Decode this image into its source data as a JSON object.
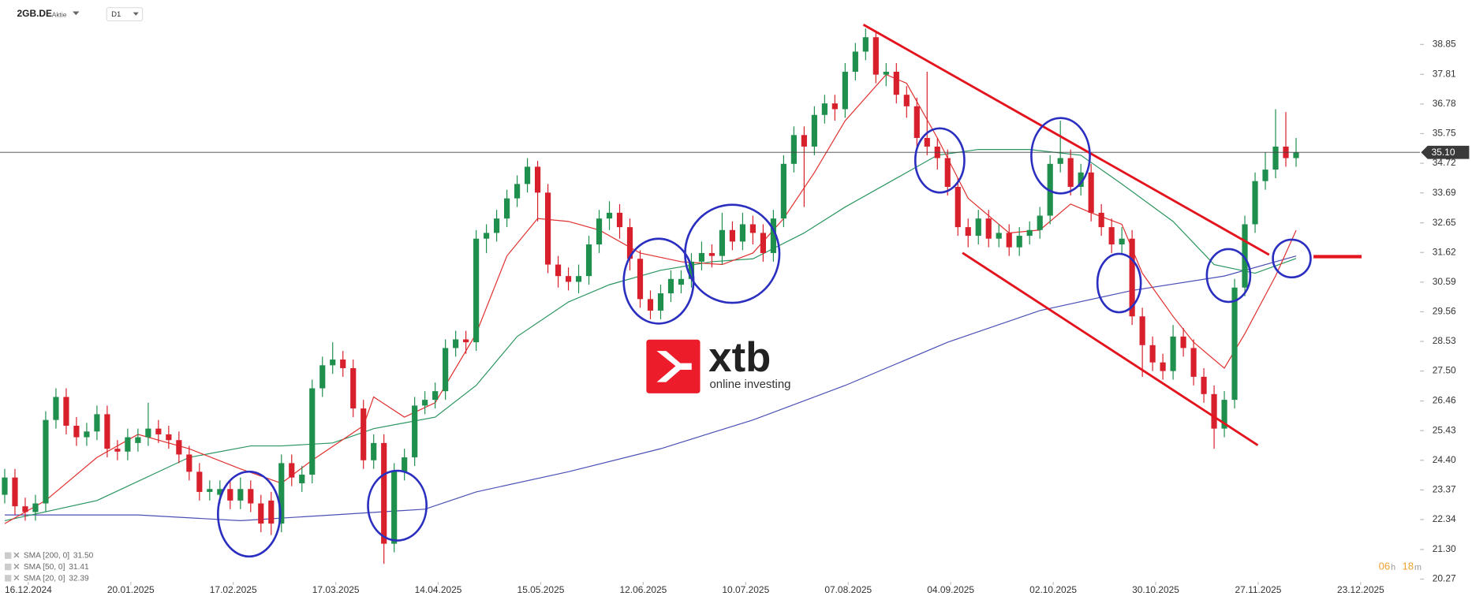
{
  "header": {
    "symbol": "2GB.DE",
    "kind": "Aktie",
    "interval": "D1"
  },
  "logo": {
    "brand": "xtb",
    "tagline": "online investing"
  },
  "countdown": [
    "06",
    "h",
    "18",
    "m"
  ],
  "chart_data": {
    "type": "candlestick",
    "up_color": "#1f8f4e",
    "down_color": "#d8202c",
    "xlim": [
      -0.46,
      138.1
    ],
    "ylim": [
      20.17,
      40.39
    ],
    "yticks": [
      38.85,
      37.81,
      36.78,
      35.75,
      34.72,
      33.69,
      32.65,
      31.62,
      30.59,
      29.56,
      28.53,
      {
        "value": 27.5,
        "label": "27.50"
      },
      26.46,
      25.43,
      {
        "value": 24.4,
        "label": "24.40"
      },
      23.37,
      22.34,
      {
        "value": 21.3,
        "label": "21.30"
      },
      20.27
    ],
    "xticks": [
      {
        "value": 2.3,
        "label": "16.12.2024"
      },
      {
        "value": 12.3,
        "label": "20.01.2025"
      },
      {
        "value": 22.3,
        "label": "17.02.2025"
      },
      {
        "value": 32.3,
        "label": "17.03.2025"
      },
      {
        "value": 42.3,
        "label": "14.04.2025"
      },
      {
        "value": 52.3,
        "label": "15.05.2025"
      },
      {
        "value": 62.3,
        "label": "12.06.2025"
      },
      {
        "value": 72.3,
        "label": "10.07.2025"
      },
      {
        "value": 82.3,
        "label": "07.08.2025"
      },
      {
        "value": 92.3,
        "label": "04.09.2025"
      },
      {
        "value": 102.3,
        "label": "02.10.2025"
      },
      {
        "value": 112.3,
        "label": "30.10.2025"
      },
      {
        "value": 122.3,
        "label": "27.11.2025"
      },
      {
        "value": 132.3,
        "label": "23.12.2025"
      }
    ],
    "price_line": {
      "value": 35.1,
      "label": "35.10"
    },
    "open": [
      23.2,
      23.8,
      22.8,
      22.6,
      22.9,
      25.8,
      26.6,
      25.6,
      25.2,
      25.4,
      26,
      24.8,
      24.7,
      25.0,
      25.2,
      25.5,
      25.3,
      25.1,
      24.6,
      24.0,
      23.3,
      23.2,
      23.4,
      23.0,
      23.4,
      22.9,
      23.0,
      22.2,
      24.3,
      23.6,
      23.9,
      26.9,
      27.7,
      27.9,
      27.6,
      26.2,
      24.4,
      25.0,
      21.5,
      24.0,
      24.5,
      26.3,
      26.5,
      26.8,
      28.3,
      28.6,
      28.5,
      32.1,
      32.3,
      32.8,
      33.5,
      34.0,
      34.6,
      33.7,
      31.2,
      30.8,
      30.6,
      30.8,
      31.9,
      32.8,
      33.0,
      32.5,
      31.4,
      30.0,
      29.6,
      30.2,
      30.5,
      30.7,
      31.3,
      31.6,
      31.5,
      32.4,
      32.0,
      32.6,
      32.3,
      31.6,
      32.8,
      34.7,
      35.7,
      35.3,
      36.4,
      36.8,
      36.6,
      37.9,
      38.6,
      39.1,
      37.8,
      37.9,
      37.1,
      36.7,
      35.6,
      35.3,
      34.9,
      33.9,
      32.5,
      32.2,
      32.8,
      32.1,
      32.3,
      31.8,
      32.2,
      32.4,
      32.9,
      34.7,
      34.9,
      33.9,
      34.4,
      33.0,
      32.5,
      31.9,
      32.1,
      29.4,
      28.4,
      27.8,
      27.5,
      28.7,
      28.3,
      27.3,
      26.7,
      25.5,
      26.5,
      30.4,
      32.6,
      34.1,
      34.5,
      35.3,
      34.9
    ],
    "high": [
      24.1,
      24.1,
      23.1,
      23.2,
      26.1,
      26.9,
      26.9,
      25.9,
      25.7,
      26.3,
      26.3,
      25.1,
      25.5,
      25.5,
      26.4,
      25.8,
      25.6,
      25.4,
      24.9,
      24.3,
      23.7,
      23.7,
      23.7,
      23.8,
      23.7,
      23.2,
      23.3,
      24.6,
      24.6,
      24.2,
      27.2,
      28.0,
      28.5,
      28.2,
      27.9,
      26.5,
      25.3,
      25.3,
      24.3,
      24.8,
      26.6,
      26.8,
      27.1,
      28.6,
      28.9,
      28.9,
      32.4,
      32.6,
      33.1,
      33.8,
      34.3,
      34.9,
      34.8,
      34.0,
      31.5,
      31.1,
      31.2,
      32.2,
      33.1,
      33.4,
      33.3,
      32.8,
      31.7,
      30.3,
      30.5,
      31.0,
      31.0,
      31.6,
      32.0,
      31.9,
      33.0,
      32.7,
      33.0,
      32.9,
      32.6,
      33.1,
      35.0,
      36.0,
      36.0,
      36.7,
      37.1,
      37.1,
      38.2,
      38.9,
      39.4,
      39.3,
      38.2,
      38.2,
      37.4,
      37.0,
      37.9,
      35.6,
      35.2,
      34.2,
      32.8,
      33.1,
      33.1,
      32.6,
      32.6,
      32.5,
      32.7,
      33.2,
      35.0,
      36.2,
      35.2,
      34.7,
      34.7,
      33.3,
      32.8,
      32.5,
      32.4,
      29.7,
      28.7,
      28.1,
      29.1,
      29.0,
      28.6,
      27.6,
      27.0,
      26.8,
      30.7,
      32.9,
      34.4,
      35.1,
      36.6,
      36.5,
      35.6
    ],
    "low": [
      22.9,
      22.5,
      22.3,
      22.3,
      22.6,
      25.5,
      25.3,
      24.9,
      24.9,
      25.1,
      24.5,
      24.4,
      24.4,
      24.7,
      24.9,
      25.0,
      24.8,
      24.3,
      23.7,
      23.0,
      23.0,
      22.9,
      22.7,
      22.7,
      22.6,
      21.9,
      21.8,
      21.9,
      23.5,
      23.3,
      23.6,
      26.6,
      27.4,
      27.3,
      25.9,
      24.1,
      24.1,
      20.8,
      21.2,
      23.7,
      24.2,
      26.0,
      26.2,
      26.5,
      28.0,
      28.1,
      28.2,
      31.6,
      32.0,
      32.5,
      33.2,
      33.7,
      32.7,
      30.9,
      30.4,
      30.3,
      30.2,
      30.5,
      31.6,
      32.4,
      32.1,
      31.0,
      29.7,
      29.3,
      29.3,
      29.9,
      30.2,
      30.4,
      31.0,
      31.1,
      31.2,
      31.7,
      31.7,
      31.9,
      31.3,
      31.3,
      32.5,
      34.4,
      33.2,
      35.0,
      36.1,
      36.2,
      36.3,
      37.6,
      38.3,
      37.5,
      37.4,
      36.8,
      36.3,
      35.3,
      35.0,
      34.5,
      33.6,
      32.2,
      31.8,
      31.9,
      31.8,
      31.8,
      31.5,
      31.5,
      31.9,
      32.1,
      32.6,
      34.4,
      33.6,
      33.6,
      32.7,
      32.2,
      31.6,
      31.6,
      29.1,
      27.3,
      27.5,
      27.2,
      27.2,
      28.0,
      27.0,
      26.4,
      24.8,
      25.2,
      26.2,
      30.1,
      32.3,
      33.8,
      34.2,
      34.6,
      34.6
    ],
    "close": [
      23.8,
      22.8,
      22.6,
      22.9,
      25.8,
      26.6,
      25.6,
      25.2,
      25.4,
      26,
      24.8,
      24.7,
      25.2,
      25.2,
      25.5,
      25.3,
      25.1,
      24.6,
      24.0,
      23.3,
      23.4,
      23.4,
      23.0,
      23.4,
      22.9,
      22.2,
      22.2,
      24.3,
      23.8,
      23.9,
      26.9,
      27.7,
      27.9,
      27.6,
      26.2,
      24.4,
      25.0,
      21.5,
      24.0,
      24.5,
      26.3,
      26.5,
      26.8,
      28.3,
      28.6,
      28.5,
      32.1,
      32.3,
      32.8,
      33.5,
      34.0,
      34.6,
      33.7,
      31.2,
      30.8,
      30.6,
      30.8,
      31.9,
      32.8,
      33.0,
      32.5,
      31.4,
      30.0,
      29.6,
      30.2,
      30.7,
      30.7,
      31.3,
      31.6,
      31.5,
      32.4,
      32.0,
      32.6,
      32.3,
      31.6,
      32.8,
      34.7,
      35.7,
      35.3,
      36.4,
      36.8,
      36.6,
      37.9,
      38.6,
      39.1,
      37.8,
      37.9,
      37.1,
      36.7,
      35.6,
      35.3,
      34.9,
      33.9,
      32.5,
      32.2,
      32.8,
      32.1,
      32.3,
      31.8,
      32.2,
      32.4,
      32.9,
      34.7,
      34.9,
      33.9,
      34.4,
      33.0,
      32.5,
      31.9,
      32.1,
      29.4,
      28.4,
      27.8,
      27.5,
      28.7,
      28.3,
      27.3,
      26.7,
      25.5,
      26.5,
      30.4,
      32.6,
      34.1,
      34.5,
      35.3,
      34.9,
      35.1
    ],
    "series": [
      {
        "name": "SMA [200, 0]",
        "legend_value": "31.50",
        "color": "#4b4fb5",
        "x": [
          0,
          13,
          23,
          32,
          41,
          46,
          55,
          64,
          73,
          82,
          92,
          101,
          110,
          119,
          126
        ],
        "values": [
          22.5,
          22.5,
          22.3,
          22.5,
          22.7,
          23.3,
          24.0,
          24.8,
          25.8,
          27.0,
          28.5,
          29.6,
          30.3,
          30.8,
          31.5
        ]
      },
      {
        "name": "SMA [50, 0]",
        "legend_value": "31.41",
        "color": "#2a9560",
        "x": [
          0,
          9,
          18,
          24,
          27,
          32,
          36,
          42,
          46,
          50,
          55,
          59,
          64,
          69,
          73,
          78,
          82,
          87,
          91,
          95,
          100,
          105,
          109,
          114,
          118,
          122,
          126
        ],
        "values": [
          22.3,
          23.0,
          24.5,
          24.9,
          24.9,
          25.0,
          25.5,
          25.9,
          27.0,
          28.7,
          29.9,
          30.5,
          31.0,
          31.3,
          31.4,
          32.3,
          33.2,
          34.2,
          35.0,
          35.2,
          35.2,
          35.0,
          34.0,
          32.7,
          31.2,
          30.9,
          31.41
        ]
      },
      {
        "name": "SMA [20, 0]",
        "legend_value": "32.39",
        "color": "#e0302f",
        "x": [
          0,
          4,
          9,
          13,
          18,
          23,
          27,
          30,
          35,
          36,
          39,
          42,
          46,
          49,
          52,
          55,
          58,
          62,
          66,
          70,
          73,
          76,
          79,
          82,
          86,
          88,
          91,
          94,
          98,
          101,
          104,
          106,
          109,
          111,
          114,
          116,
          119,
          121,
          124,
          126
        ],
        "values": [
          22.2,
          23.0,
          24.5,
          25.3,
          24.8,
          24.1,
          23.6,
          24.4,
          25.6,
          26.6,
          25.9,
          26.4,
          28.8,
          31.5,
          32.8,
          32.7,
          32.4,
          31.6,
          31.3,
          31.2,
          31.6,
          32.8,
          34.4,
          36.2,
          37.8,
          37.5,
          35.6,
          33.5,
          32.3,
          32.4,
          33.3,
          33.0,
          32.6,
          30.9,
          29.4,
          28.5,
          27.6,
          28.8,
          30.8,
          32.39
        ]
      }
    ]
  }
}
